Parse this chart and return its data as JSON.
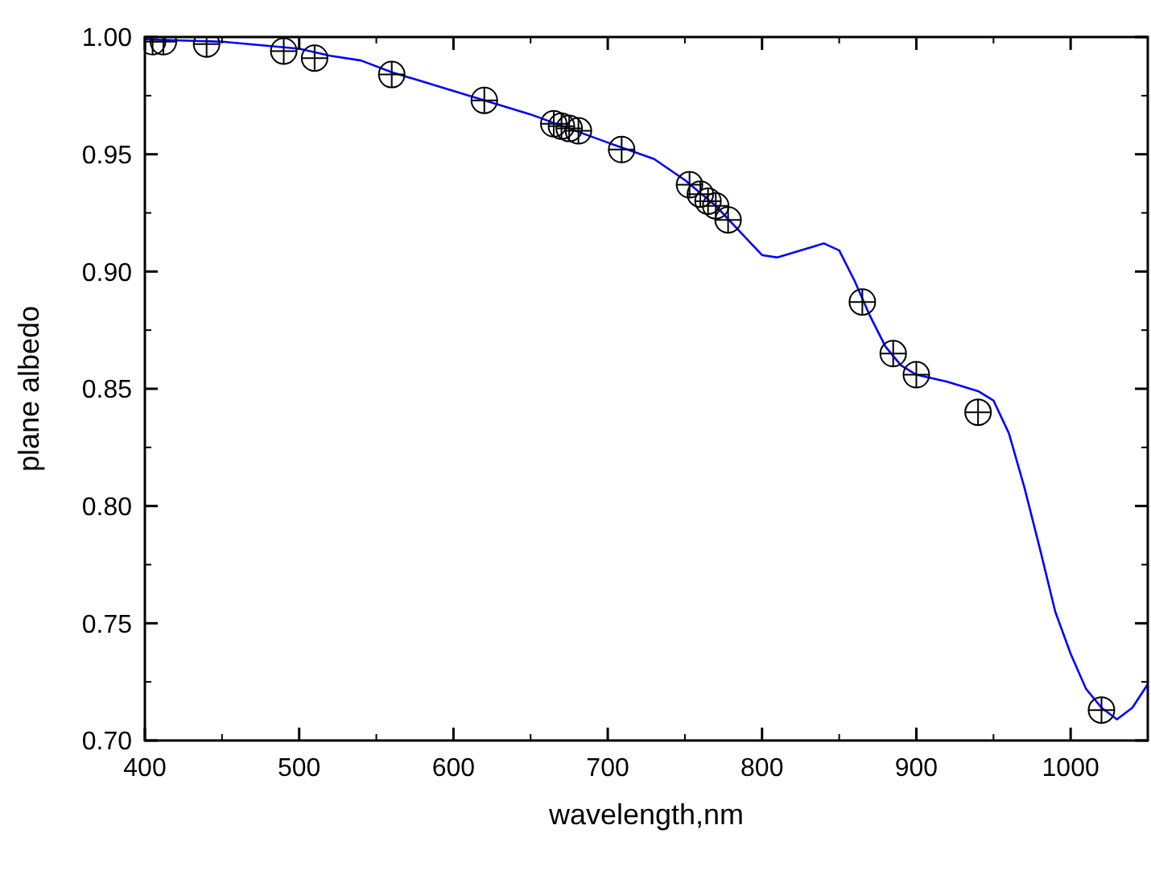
{
  "chart_data": {
    "type": "line",
    "xlabel": "wavelength,nm",
    "ylabel": "plane albedo",
    "xlim": [
      400,
      1050
    ],
    "ylim": [
      0.7,
      1.0
    ],
    "xticks": [
      400,
      500,
      600,
      700,
      800,
      900,
      1000
    ],
    "yticks": [
      {
        "value": 0.7,
        "label": "0.70"
      },
      0.75,
      {
        "value": 0.8,
        "label": "0.80"
      },
      0.85,
      {
        "value": 0.9,
        "label": "0.90"
      },
      0.95,
      {
        "value": 1.0,
        "label": "1.00"
      }
    ],
    "grid": false,
    "series": [
      {
        "color": "#0000ff",
        "marker": "none",
        "line_style": "solid",
        "x": [
          400,
          450,
          500,
          520,
          540,
          560,
          600,
          650,
          700,
          730,
          750,
          770,
          790,
          800,
          810,
          820,
          840,
          850,
          860,
          870,
          880,
          890,
          900,
          920,
          940,
          950,
          960,
          970,
          980,
          990,
          1000,
          1010,
          1020,
          1030,
          1040,
          1050
        ],
        "values": [
          0.999,
          0.998,
          0.995,
          0.992,
          0.99,
          0.985,
          0.977,
          0.967,
          0.955,
          0.948,
          0.939,
          0.928,
          0.914,
          0.907,
          0.906,
          0.908,
          0.912,
          0.909,
          0.896,
          0.881,
          0.868,
          0.86,
          0.856,
          0.853,
          0.849,
          0.845,
          0.831,
          0.808,
          0.782,
          0.755,
          0.737,
          0.722,
          0.714,
          0.709,
          0.714,
          0.724
        ]
      },
      {
        "type": "scatter",
        "color": "#000000",
        "marker": "circle",
        "x": [
          405,
          412,
          440,
          490,
          510,
          560,
          620,
          665,
          670,
          675,
          681,
          709,
          753,
          760,
          765,
          770,
          778,
          865,
          885,
          900,
          940,
          1020
        ],
        "values": [
          0.998,
          0.998,
          0.997,
          0.994,
          0.991,
          0.984,
          0.973,
          0.963,
          0.962,
          0.961,
          0.96,
          0.952,
          0.937,
          0.933,
          0.93,
          0.928,
          0.922,
          0.887,
          0.865,
          0.856,
          0.84,
          0.713
        ]
      }
    ]
  }
}
